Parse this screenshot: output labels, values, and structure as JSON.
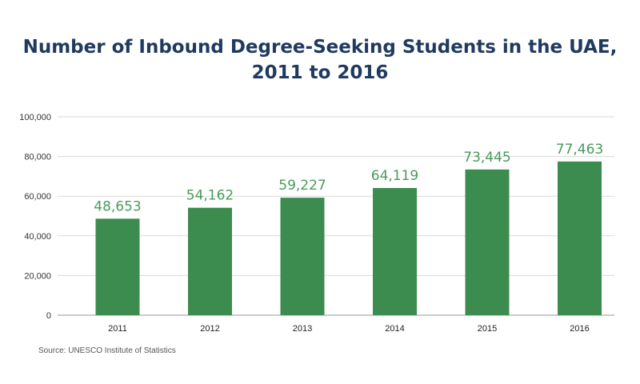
{
  "chart_data": {
    "type": "bar",
    "title_line1": "Number of Inbound Degree-Seeking Students in the UAE,",
    "title_line2": "2011 to 2016",
    "categories": [
      "2011",
      "2012",
      "2013",
      "2014",
      "2015",
      "2016"
    ],
    "values": [
      48653,
      54162,
      59227,
      64119,
      73445,
      77463
    ],
    "value_labels": [
      "48,653",
      "54,162",
      "59,227",
      "64,119",
      "73,445",
      "77,463"
    ],
    "yticks": [
      "0",
      "20,000",
      "40,000",
      "60,000",
      "80,000",
      "100,000"
    ],
    "ytick_values": [
      0,
      20000,
      40000,
      60000,
      80000,
      100000
    ],
    "ylim": [
      0,
      100000
    ],
    "grid": true,
    "bar_color": "#3d8c4f",
    "label_color": "#4a9a5c",
    "source": "Source: UNESCO Institute of Statistics"
  }
}
